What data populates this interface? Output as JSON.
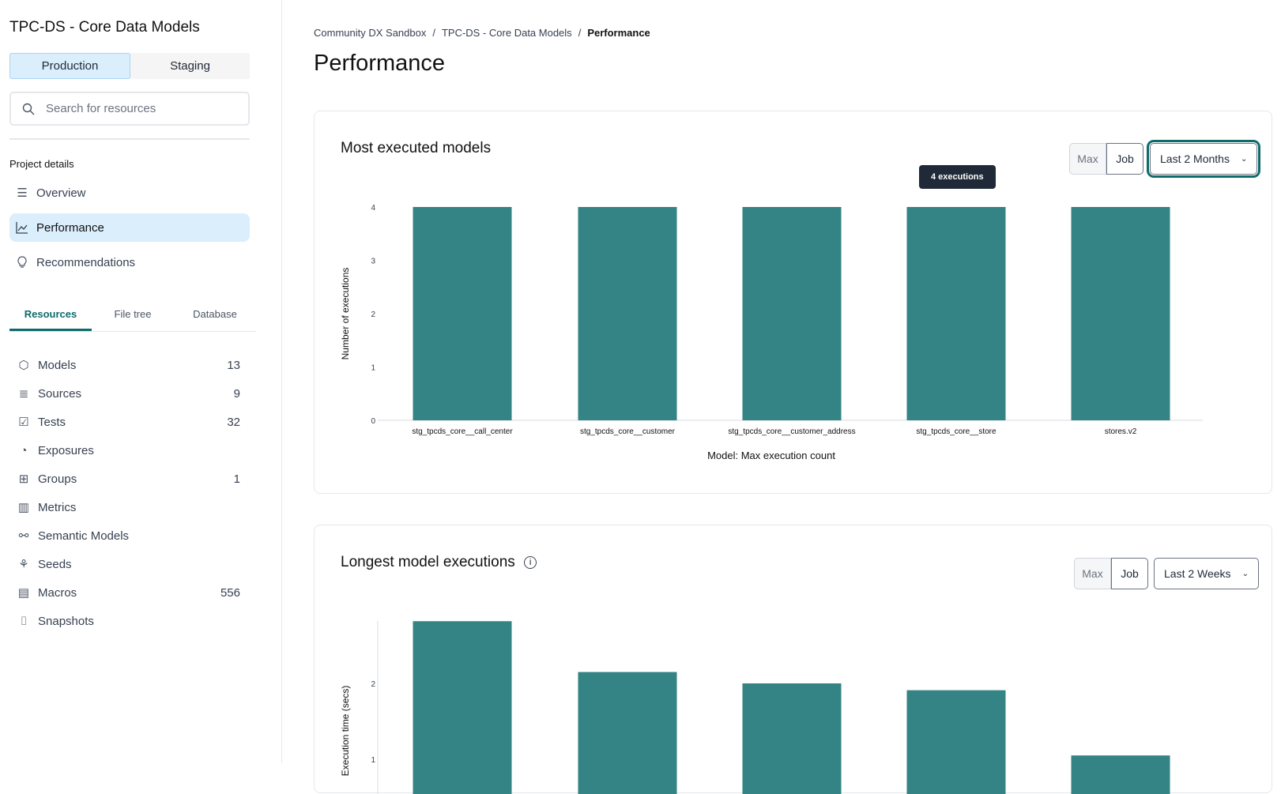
{
  "sidebar": {
    "project_title": "TPC-DS - Core Data Models",
    "env_tabs": [
      "Production",
      "Staging"
    ],
    "search_placeholder": "Search for resources",
    "section_label": "Project details",
    "nav": [
      {
        "label": "Overview",
        "icon": "list-icon"
      },
      {
        "label": "Performance",
        "icon": "line-chart-icon",
        "active": true
      },
      {
        "label": "Recommendations",
        "icon": "lightbulb-icon"
      }
    ],
    "tabs": [
      "Resources",
      "File tree",
      "Database"
    ],
    "resources": [
      {
        "label": "Models",
        "count": "13",
        "icon": "cube-icon"
      },
      {
        "label": "Sources",
        "count": "9",
        "icon": "database-icon"
      },
      {
        "label": "Tests",
        "count": "32",
        "icon": "clipboard-check-icon"
      },
      {
        "label": "Exposures",
        "count": "",
        "icon": "gauge-icon"
      },
      {
        "label": "Groups",
        "count": "1",
        "icon": "grid-icon"
      },
      {
        "label": "Metrics",
        "count": "",
        "icon": "bar-chart-icon"
      },
      {
        "label": "Semantic Models",
        "count": "",
        "icon": "nodes-icon"
      },
      {
        "label": "Seeds",
        "count": "",
        "icon": "sprout-icon"
      },
      {
        "label": "Macros",
        "count": "556",
        "icon": "document-icon"
      },
      {
        "label": "Snapshots",
        "count": "",
        "icon": "camera-icon"
      }
    ]
  },
  "breadcrumb": [
    "Community DX Sandbox",
    "TPC-DS - Core Data Models",
    "Performance"
  ],
  "page_title": "Performance",
  "colors": {
    "bar": "#348385",
    "accent": "#0f6b6b",
    "active_bg": "#dbeefc"
  },
  "cards": [
    {
      "title": "Most executed models",
      "seg": [
        "Max",
        "Job"
      ],
      "range": "Last 2 Months",
      "tooltip": "4 executions"
    },
    {
      "title": "Longest model executions",
      "seg": [
        "Max",
        "Job"
      ],
      "range": "Last 2 Weeks"
    }
  ],
  "chart_data": [
    {
      "type": "bar",
      "ylabel": "Number of executions",
      "xlabel": "Model: Max execution count",
      "categories": [
        "stg_tpcds_core__call_center",
        "stg_tpcds_core__customer",
        "stg_tpcds_core__customer_address",
        "stg_tpcds_core__store",
        "stores.v2"
      ],
      "values": [
        4,
        4,
        4,
        4,
        4
      ],
      "yticks": [
        0,
        1,
        2,
        3,
        4
      ],
      "ylim": [
        0,
        4
      ]
    },
    {
      "type": "bar",
      "ylabel": "Execution time (secs)",
      "values": [
        2.82,
        2.15,
        2.0,
        1.91,
        1.05
      ],
      "yticks": [
        1,
        2
      ]
    }
  ]
}
